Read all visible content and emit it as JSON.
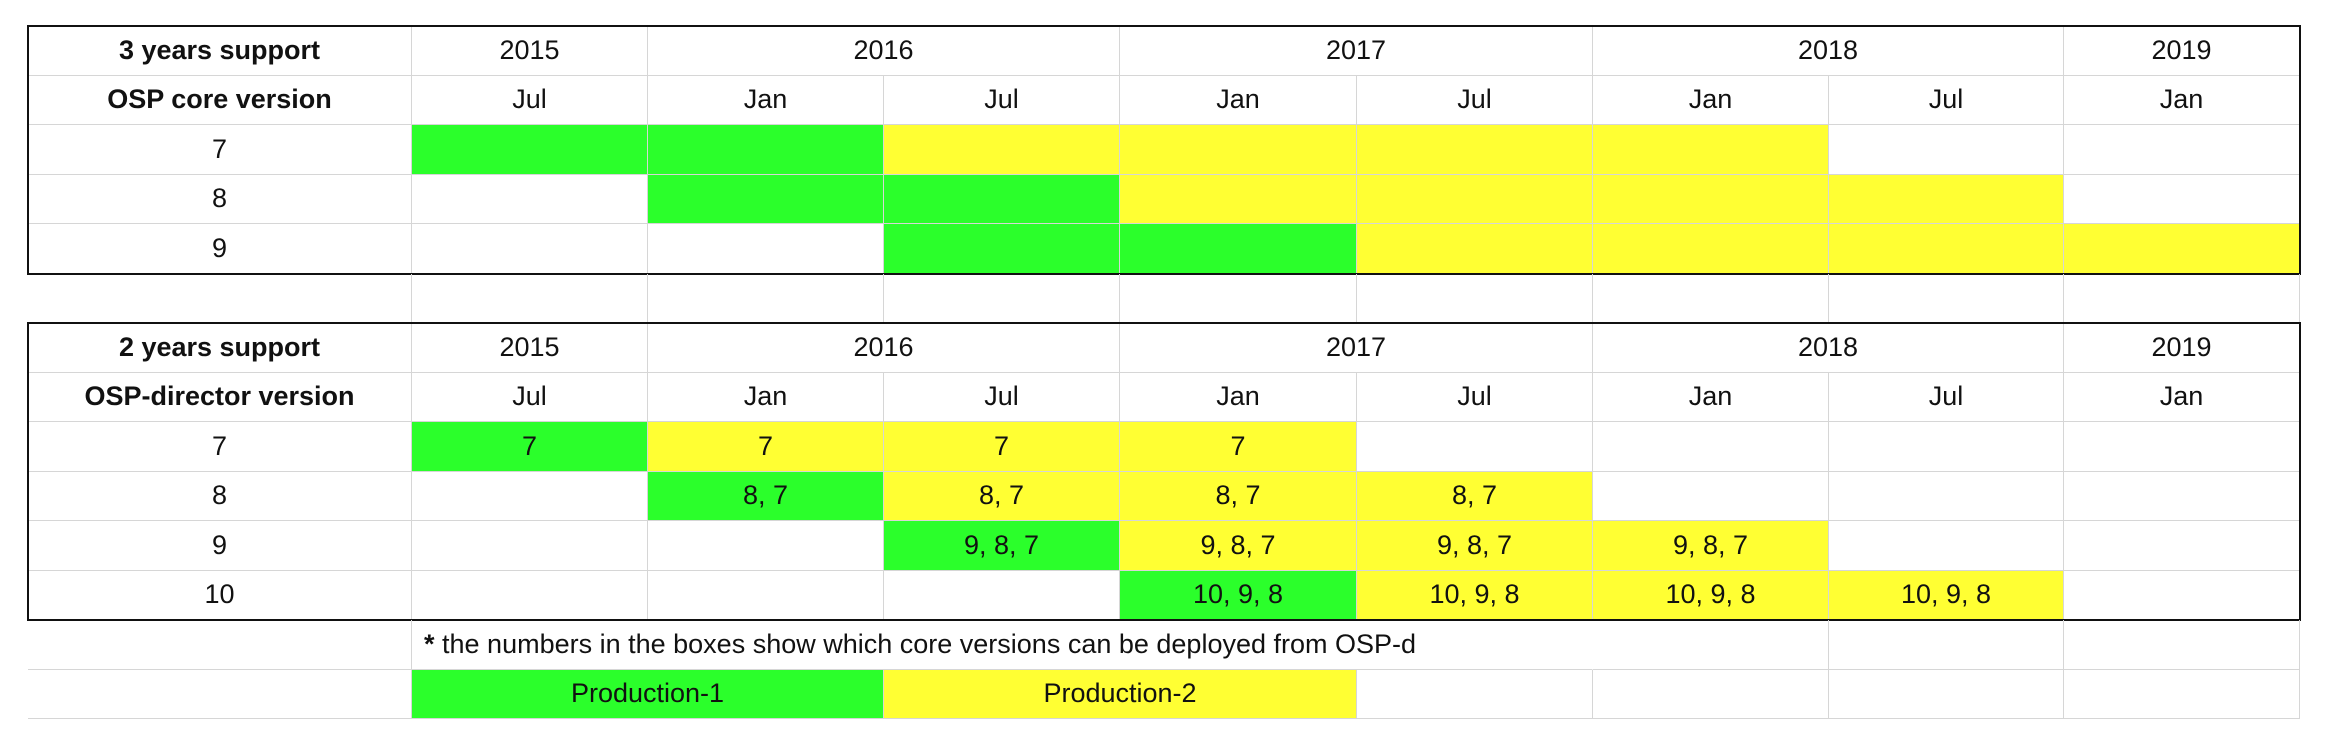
{
  "colors": {
    "production_1": "#2bff2b",
    "production_2": "#ffff33",
    "grid": "#d6d6d6",
    "frame": "#111111"
  },
  "table_3yr": {
    "header_label": "3 years support",
    "subheader_label": "OSP core version",
    "years": [
      "2015",
      "2016",
      "2017",
      "2018",
      "2019"
    ],
    "months": [
      "Jul",
      "Jan",
      "Jul",
      "Jan",
      "Jul",
      "Jan",
      "Jul",
      "Jan"
    ],
    "rows": [
      {
        "label": "7",
        "cells": [
          "P1",
          "P1",
          "P2",
          "P2",
          "P2",
          "P2",
          "",
          ""
        ]
      },
      {
        "label": "8",
        "cells": [
          "",
          "P1",
          "P1",
          "P2",
          "P2",
          "P2",
          "P2",
          ""
        ]
      },
      {
        "label": "9",
        "cells": [
          "",
          "",
          "P1",
          "P1",
          "P2",
          "P2",
          "P2",
          "P2"
        ]
      }
    ]
  },
  "table_2yr": {
    "header_label": "2 years support",
    "subheader_label": "OSP-director version",
    "years": [
      "2015",
      "2016",
      "2017",
      "2018",
      "2019"
    ],
    "months": [
      "Jul",
      "Jan",
      "Jul",
      "Jan",
      "Jul",
      "Jan",
      "Jul",
      "Jan"
    ],
    "rows": [
      {
        "label": "7",
        "cells": [
          [
            "P1",
            "7"
          ],
          [
            "P2",
            "7"
          ],
          [
            "P2",
            "7"
          ],
          [
            "P2",
            "7"
          ],
          [
            "",
            ""
          ],
          [
            "",
            ""
          ],
          [
            "",
            ""
          ],
          [
            "",
            ""
          ]
        ]
      },
      {
        "label": "8",
        "cells": [
          [
            "",
            ""
          ],
          [
            "P1",
            "8, 7"
          ],
          [
            "P2",
            "8, 7"
          ],
          [
            "P2",
            "8, 7"
          ],
          [
            "P2",
            "8, 7"
          ],
          [
            "",
            ""
          ],
          [
            "",
            ""
          ],
          [
            "",
            ""
          ]
        ]
      },
      {
        "label": "9",
        "cells": [
          [
            "",
            ""
          ],
          [
            "",
            ""
          ],
          [
            "P1",
            "9, 8, 7"
          ],
          [
            "P2",
            "9, 8, 7"
          ],
          [
            "P2",
            "9, 8, 7"
          ],
          [
            "P2",
            "9, 8, 7"
          ],
          [
            "",
            ""
          ],
          [
            "",
            ""
          ]
        ]
      },
      {
        "label": "10",
        "cells": [
          [
            "",
            ""
          ],
          [
            "",
            ""
          ],
          [
            "",
            ""
          ],
          [
            "P1",
            "10, 9, 8"
          ],
          [
            "P2",
            "10, 9, 8"
          ],
          [
            "P2",
            "10, 9, 8"
          ],
          [
            "P2",
            "10, 9, 8"
          ],
          [
            "",
            ""
          ]
        ]
      }
    ]
  },
  "footnote": {
    "star": "*",
    "text": " the numbers in the boxes show which core versions can be deployed from OSP-d"
  },
  "legend": {
    "production_1": "Production-1",
    "production_2": "Production-2"
  }
}
